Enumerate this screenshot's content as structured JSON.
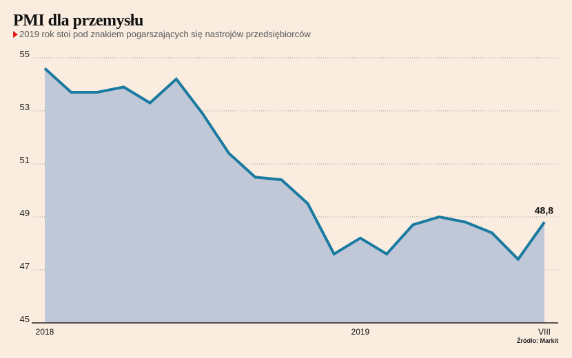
{
  "header": {
    "title": "PMI dla przemysłu",
    "subtitle": "2019 rok stoi pod znakiem pogarszających się nastrojów przedsiębiorców",
    "bullet_icon": "red-triangle-icon"
  },
  "source": "Źródło: Markit",
  "colors": {
    "background": "#faede0",
    "line": "#1a7aa0",
    "area": "#c0c8d8",
    "bullet": "#e01b1b"
  },
  "chart_data": {
    "type": "area",
    "title": "PMI dla przemysłu",
    "subtitle": "2019 rok stoi pod znakiem pogarszających się nastrojów przedsiębiorców",
    "xlabel": "",
    "ylabel": "",
    "x": [
      "I 2018",
      "II 2018",
      "III 2018",
      "IV 2018",
      "V 2018",
      "VI 2018",
      "VII 2018",
      "VIII 2018",
      "IX 2018",
      "X 2018",
      "XI 2018",
      "XII 2018",
      "I 2019",
      "II 2019",
      "III 2019",
      "IV 2019",
      "V 2019",
      "VI 2019",
      "VII 2019",
      "VIII 2019"
    ],
    "series": [
      {
        "name": "PMI",
        "values": [
          54.6,
          53.7,
          53.7,
          53.9,
          53.3,
          54.2,
          52.9,
          51.4,
          50.5,
          50.4,
          49.5,
          47.6,
          48.2,
          47.6,
          48.7,
          49.0,
          48.8,
          48.4,
          47.4,
          48.8
        ]
      }
    ],
    "ylim": [
      45,
      55
    ],
    "yticks": [
      "55",
      "53",
      "51",
      "49",
      "47",
      "45"
    ],
    "ytick_values": [
      55,
      53,
      51,
      49,
      47,
      45
    ],
    "xtick_labels": [
      {
        "index": 0,
        "label": "2018"
      },
      {
        "index": 12,
        "label": "2019"
      },
      {
        "index": 19,
        "label": "VIII"
      }
    ],
    "end_annotation": "48,8",
    "grid": true,
    "legend": "none"
  }
}
